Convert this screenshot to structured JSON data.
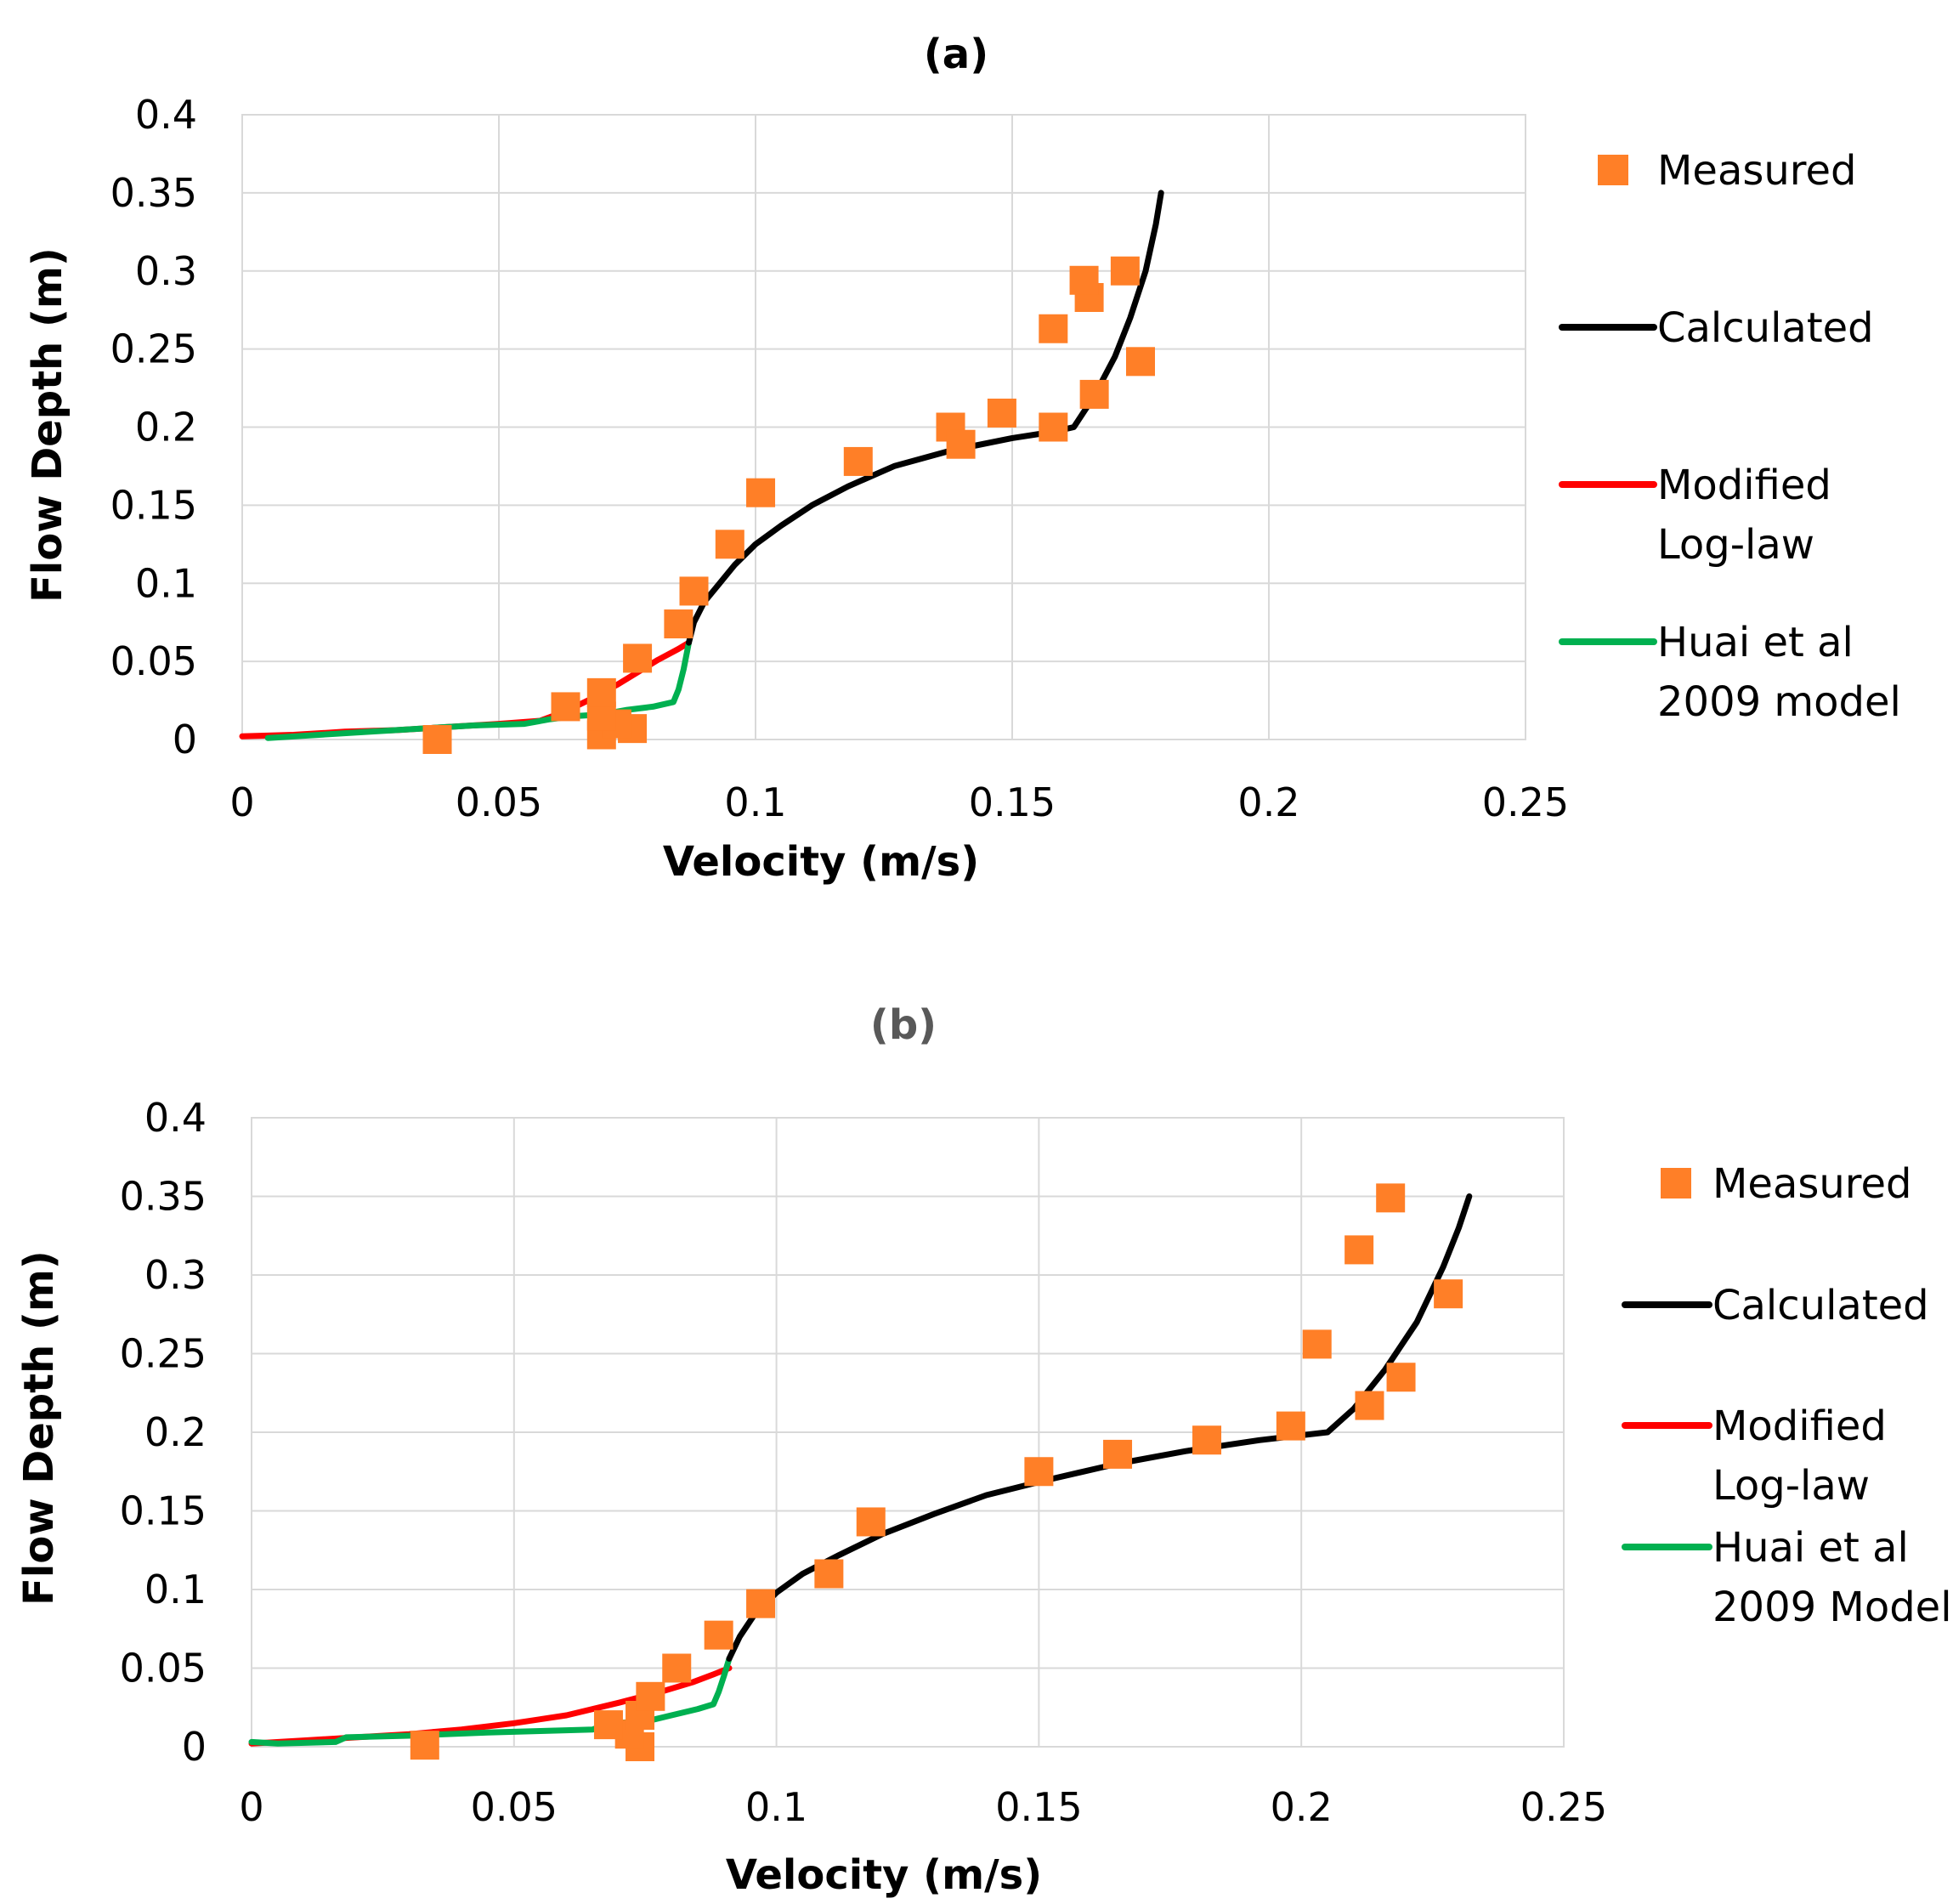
{
  "chart_data": [
    {
      "panel": "a",
      "type": "scatter",
      "title": "(a)",
      "title_color": "#000000",
      "xlabel": "Velocity (m/s)",
      "ylabel": "Flow Depth (m)",
      "xlim": [
        0,
        0.25
      ],
      "ylim": [
        0,
        0.4
      ],
      "x_ticks": [
        "0",
        "0.05",
        "0.1",
        "0.15",
        "0.2",
        "0.25"
      ],
      "y_ticks": [
        "0",
        "0.05",
        "0.1",
        "0.15",
        "0.2",
        "0.25",
        "0.3",
        "0.35",
        "0.4"
      ],
      "grid": true,
      "legend_position": "right",
      "legend": [
        "Measured",
        "Calculated",
        "Modified\nLog-law",
        "Huai et al\n2009 model"
      ],
      "series": [
        {
          "name": "Measured",
          "kind": "markers",
          "color": "#ff7f27",
          "points": [
            [
              0.038,
              0
            ],
            [
              0.07,
              0.003
            ],
            [
              0.076,
              0.007
            ],
            [
              0.073,
              0.01
            ],
            [
              0.07,
              0.015
            ],
            [
              0.063,
              0.021
            ],
            [
              0.07,
              0.03
            ],
            [
              0.077,
              0.052
            ],
            [
              0.085,
              0.074
            ],
            [
              0.088,
              0.095
            ],
            [
              0.095,
              0.125
            ],
            [
              0.101,
              0.158
            ],
            [
              0.12,
              0.178
            ],
            [
              0.138,
              0.2
            ],
            [
              0.14,
              0.189
            ],
            [
              0.148,
              0.209
            ],
            [
              0.158,
              0.2
            ],
            [
              0.166,
              0.221
            ],
            [
              0.175,
              0.242
            ],
            [
              0.158,
              0.263
            ],
            [
              0.165,
              0.283
            ],
            [
              0.164,
              0.294
            ],
            [
              0.172,
              0.3
            ]
          ]
        },
        {
          "name": "Calculated",
          "kind": "line",
          "color": "#000000",
          "points": [
            [
              0.087,
              0.062
            ],
            [
              0.088,
              0.075
            ],
            [
              0.09,
              0.088
            ],
            [
              0.093,
              0.1
            ],
            [
              0.096,
              0.112
            ],
            [
              0.1,
              0.125
            ],
            [
              0.105,
              0.137
            ],
            [
              0.111,
              0.15
            ],
            [
              0.118,
              0.162
            ],
            [
              0.127,
              0.175
            ],
            [
              0.138,
              0.185
            ],
            [
              0.15,
              0.193
            ],
            [
              0.158,
              0.197
            ],
            [
              0.162,
              0.2
            ],
            [
              0.166,
              0.22
            ],
            [
              0.17,
              0.245
            ],
            [
              0.173,
              0.27
            ],
            [
              0.176,
              0.3
            ],
            [
              0.178,
              0.33
            ],
            [
              0.179,
              0.35
            ]
          ]
        },
        {
          "name": "Modified Log-law",
          "kind": "line",
          "color": "#ff0000",
          "points": [
            [
              0,
              0.002
            ],
            [
              0.01,
              0.003
            ],
            [
              0.02,
              0.005
            ],
            [
              0.03,
              0.006
            ],
            [
              0.04,
              0.008
            ],
            [
              0.05,
              0.01
            ],
            [
              0.058,
              0.012
            ],
            [
              0.063,
              0.018
            ],
            [
              0.068,
              0.026
            ],
            [
              0.073,
              0.035
            ],
            [
              0.077,
              0.043
            ],
            [
              0.081,
              0.051
            ],
            [
              0.085,
              0.058
            ],
            [
              0.087,
              0.062
            ]
          ]
        },
        {
          "name": "Huai et al 2009 model",
          "kind": "line",
          "color": "#00b050",
          "points": [
            [
              0.005,
              0.001
            ],
            [
              0.015,
              0.003
            ],
            [
              0.025,
              0.005
            ],
            [
              0.035,
              0.007
            ],
            [
              0.045,
              0.009
            ],
            [
              0.055,
              0.01
            ],
            [
              0.06,
              0.013
            ],
            [
              0.065,
              0.015
            ],
            [
              0.07,
              0.016
            ],
            [
              0.075,
              0.019
            ],
            [
              0.08,
              0.021
            ],
            [
              0.084,
              0.024
            ],
            [
              0.085,
              0.032
            ],
            [
              0.086,
              0.045
            ],
            [
              0.087,
              0.062
            ]
          ]
        }
      ]
    },
    {
      "panel": "b",
      "type": "scatter",
      "title": "(b)",
      "title_color": "#595959",
      "xlabel": "Velocity (m/s)",
      "ylabel": "Flow Depth (m)",
      "xlim": [
        0,
        0.25
      ],
      "ylim": [
        0,
        0.4
      ],
      "x_ticks": [
        "0",
        "0.05",
        "0.1",
        "0.15",
        "0.2",
        "0.25"
      ],
      "y_ticks": [
        "0",
        "0.05",
        "0.1",
        "0.15",
        "0.2",
        "0.25",
        "0.3",
        "0.35",
        "0.4"
      ],
      "grid": true,
      "legend_position": "right",
      "legend": [
        "Measured",
        "Calculated",
        "Modified\nLog-law",
        "Huai et al\n2009 Model"
      ],
      "series": [
        {
          "name": "Measured",
          "kind": "markers",
          "color": "#ff7f27",
          "points": [
            [
              0.033,
              0.001
            ],
            [
              0.074,
              0
            ],
            [
              0.072,
              0.008
            ],
            [
              0.068,
              0.014
            ],
            [
              0.074,
              0.02
            ],
            [
              0.076,
              0.032
            ],
            [
              0.081,
              0.05
            ],
            [
              0.089,
              0.071
            ],
            [
              0.097,
              0.091
            ],
            [
              0.11,
              0.11
            ],
            [
              0.118,
              0.143
            ],
            [
              0.15,
              0.175
            ],
            [
              0.165,
              0.186
            ],
            [
              0.182,
              0.195
            ],
            [
              0.198,
              0.204
            ],
            [
              0.203,
              0.256
            ],
            [
              0.211,
              0.316
            ],
            [
              0.217,
              0.349
            ],
            [
              0.213,
              0.217
            ],
            [
              0.219,
              0.235
            ],
            [
              0.228,
              0.288
            ]
          ]
        },
        {
          "name": "Calculated",
          "kind": "line",
          "color": "#000000",
          "points": [
            [
              0.091,
              0.056
            ],
            [
              0.093,
              0.07
            ],
            [
              0.096,
              0.085
            ],
            [
              0.1,
              0.098
            ],
            [
              0.105,
              0.11
            ],
            [
              0.112,
              0.122
            ],
            [
              0.12,
              0.135
            ],
            [
              0.13,
              0.148
            ],
            [
              0.14,
              0.16
            ],
            [
              0.152,
              0.17
            ],
            [
              0.165,
              0.18
            ],
            [
              0.178,
              0.188
            ],
            [
              0.192,
              0.195
            ],
            [
              0.205,
              0.2
            ],
            [
              0.21,
              0.215
            ],
            [
              0.216,
              0.24
            ],
            [
              0.222,
              0.27
            ],
            [
              0.227,
              0.305
            ],
            [
              0.23,
              0.33
            ],
            [
              0.232,
              0.35
            ]
          ]
        },
        {
          "name": "Modified Log-law",
          "kind": "line",
          "color": "#ff0000",
          "points": [
            [
              0,
              0.002
            ],
            [
              0.01,
              0.004
            ],
            [
              0.02,
              0.006
            ],
            [
              0.03,
              0.008
            ],
            [
              0.04,
              0.011
            ],
            [
              0.05,
              0.015
            ],
            [
              0.06,
              0.02
            ],
            [
              0.07,
              0.028
            ],
            [
              0.078,
              0.035
            ],
            [
              0.084,
              0.041
            ],
            [
              0.088,
              0.046
            ],
            [
              0.091,
              0.05
            ]
          ]
        },
        {
          "name": "Huai et al 2009 Model",
          "kind": "line",
          "color": "#00b050",
          "points": [
            [
              0,
              0.003
            ],
            [
              0.005,
              0.002
            ],
            [
              0.016,
              0.003
            ],
            [
              0.018,
              0.006
            ],
            [
              0.03,
              0.007
            ],
            [
              0.045,
              0.009
            ],
            [
              0.055,
              0.01
            ],
            [
              0.065,
              0.011
            ],
            [
              0.068,
              0.015
            ],
            [
              0.075,
              0.016
            ],
            [
              0.08,
              0.02
            ],
            [
              0.085,
              0.024
            ],
            [
              0.088,
              0.027
            ],
            [
              0.089,
              0.035
            ],
            [
              0.09,
              0.045
            ],
            [
              0.091,
              0.056
            ]
          ]
        }
      ]
    }
  ]
}
